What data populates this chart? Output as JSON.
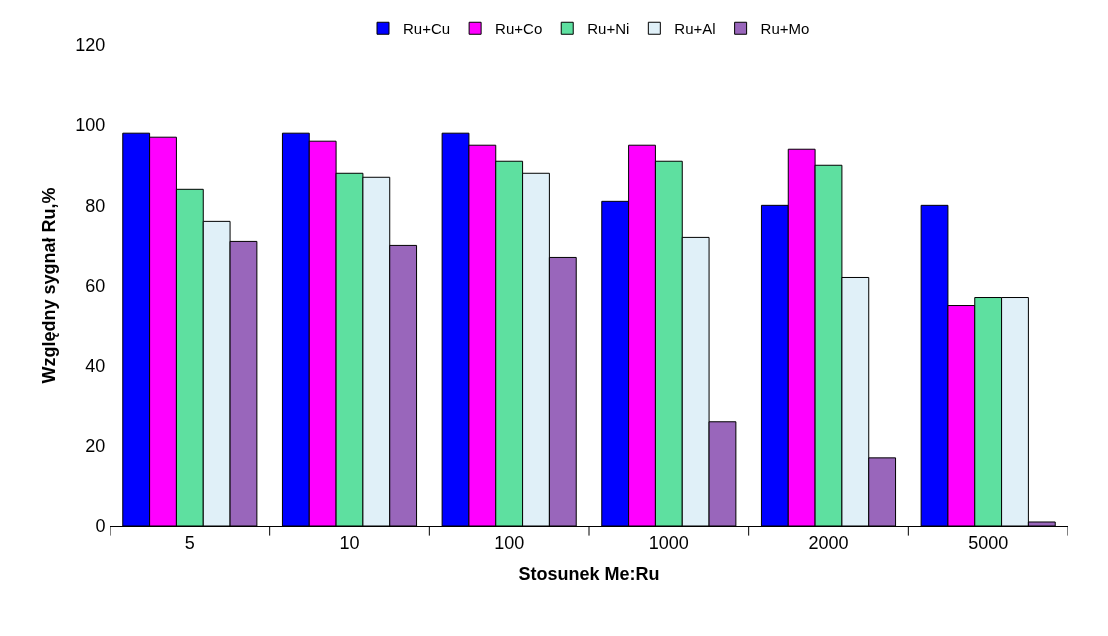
{
  "chart_data": {
    "type": "bar",
    "xlabel": "Stosunek Me:Ru",
    "ylabel": "Względny sygnał Ru,%",
    "categories": [
      "5",
      "10",
      "100",
      "1000",
      "2000",
      "5000"
    ],
    "series": [
      {
        "name": "Ru+Cu",
        "color": "#0000ff",
        "values": [
          98,
          98,
          98,
          81,
          80,
          80
        ]
      },
      {
        "name": "Ru+Co",
        "color": "#ff00ff",
        "values": [
          97,
          96,
          95,
          95,
          94,
          55
        ]
      },
      {
        "name": "Ru+Ni",
        "color": "#5ee0a0",
        "values": [
          84,
          88,
          91,
          91,
          90,
          57
        ]
      },
      {
        "name": "Ru+Al",
        "color": "#e0f0f8",
        "values": [
          76,
          87,
          88,
          72,
          62,
          57
        ]
      },
      {
        "name": "Ru+Mo",
        "color": "#9966bb",
        "values": [
          71,
          70,
          67,
          26,
          17,
          1
        ]
      }
    ],
    "ylim": [
      0,
      120
    ],
    "yticks": [
      0,
      20,
      40,
      60,
      80,
      100,
      120
    ],
    "legend": "top"
  }
}
